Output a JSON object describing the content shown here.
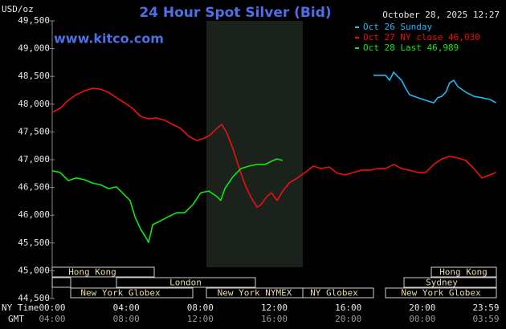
{
  "title": "24 Hour Spot Silver (Bid)",
  "timestamp": "October 28, 2025 12:27",
  "source": "www.kitco.com",
  "chart_data": {
    "type": "line",
    "ylabel": "USD/oz",
    "row_labels": [
      "NY Time",
      "GMT"
    ],
    "legend": "top-right",
    "grid": false,
    "xlim": [
      0,
      24
    ],
    "ylim": [
      44500,
      49500
    ],
    "yticks": [
      {
        "value": 44500,
        "label": "44,500"
      },
      {
        "value": 45000,
        "label": "45,000"
      },
      {
        "value": 45500,
        "label": "45,500"
      },
      {
        "value": 46000,
        "label": "46,000"
      },
      {
        "value": 46500,
        "label": "46,500"
      },
      {
        "value": 47000,
        "label": "47,000"
      },
      {
        "value": 47500,
        "label": "47,500"
      },
      {
        "value": 48000,
        "label": "48,000"
      },
      {
        "value": 48500,
        "label": "48,500"
      },
      {
        "value": 49000,
        "label": "49,000"
      },
      {
        "value": 49500,
        "label": "49,500"
      }
    ],
    "xticks": [
      {
        "value": 0,
        "label": "00:00"
      },
      {
        "value": 4,
        "label": "04:00"
      },
      {
        "value": 8,
        "label": "08:00"
      },
      {
        "value": 12,
        "label": "12:00"
      },
      {
        "value": 16,
        "label": "16:00"
      },
      {
        "value": 20,
        "label": "20:00"
      },
      {
        "value": 23.98,
        "label": "23:59"
      }
    ],
    "gmt_ticks": [
      {
        "value": 0,
        "label": "04:00"
      },
      {
        "value": 4,
        "label": "08:00"
      },
      {
        "value": 8,
        "label": "12:00"
      },
      {
        "value": 12,
        "label": "16:00"
      },
      {
        "value": 16,
        "label": "20:00"
      },
      {
        "value": 20,
        "label": "00:00"
      },
      {
        "value": 23.98,
        "label": "03:59"
      }
    ],
    "sessions": [
      "Hong Kong",
      "Hong Kong",
      "London",
      "Sydney",
      "New York Globex",
      "New York NYMEX",
      "NY Globex",
      "New York Globex"
    ],
    "series": [
      {
        "name": "Oct 26 Sunday",
        "color": "#1eb8ff",
        "x": [
          17.36,
          18.01,
          18.23,
          18.45,
          18.66,
          18.88,
          19.1,
          19.31,
          19.75,
          20.18,
          20.62,
          20.83,
          21.05,
          21.27,
          21.48,
          21.7,
          21.92,
          22.35,
          22.79,
          23.22,
          23.65,
          23.98
        ],
        "values": [
          48520,
          48520,
          48430,
          48575,
          48500,
          48430,
          48285,
          48170,
          48115,
          48070,
          48025,
          48115,
          48140,
          48215,
          48385,
          48430,
          48315,
          48215,
          48140,
          48115,
          48085,
          48025
        ]
      },
      {
        "name": "Oct 27 NY close 46,030",
        "color": "#f01010",
        "x": [
          0,
          0.43,
          0.87,
          1.3,
          1.74,
          2.17,
          2.6,
          3.04,
          3.47,
          3.91,
          4.34,
          4.77,
          5.21,
          5.64,
          6.08,
          6.51,
          6.94,
          7.38,
          7.81,
          8.25,
          8.55,
          8.9,
          9.16,
          9.42,
          9.77,
          10.11,
          10.42,
          10.72,
          11.07,
          11.28,
          11.59,
          11.85,
          12.15,
          12.46,
          12.8,
          13.24,
          13.67,
          14.11,
          14.54,
          14.97,
          15.41,
          15.84,
          16.28,
          16.71,
          17.14,
          17.58,
          18.01,
          18.45,
          18.88,
          19.31,
          19.75,
          20.18,
          20.62,
          21.05,
          21.48,
          21.92,
          22.35,
          22.79,
          23.22,
          23.65,
          23.98
        ],
        "values": [
          47850,
          47925,
          48070,
          48170,
          48240,
          48285,
          48270,
          48215,
          48115,
          48025,
          47925,
          47780,
          47735,
          47750,
          47710,
          47635,
          47565,
          47420,
          47345,
          47390,
          47450,
          47565,
          47635,
          47490,
          47200,
          46840,
          46550,
          46335,
          46145,
          46190,
          46335,
          46405,
          46265,
          46435,
          46580,
          46670,
          46770,
          46885,
          46840,
          46870,
          46755,
          46725,
          46770,
          46810,
          46810,
          46840,
          46840,
          46915,
          46840,
          46810,
          46770,
          46770,
          46915,
          47015,
          47060,
          47030,
          46985,
          46840,
          46670,
          46725,
          46770
        ]
      },
      {
        "name": "Oct 28 Last 46,989",
        "color": "#10e810",
        "x": [
          0,
          0.43,
          0.87,
          1.3,
          1.74,
          2.17,
          2.6,
          3.04,
          3.47,
          3.91,
          4.21,
          4.47,
          4.77,
          5.08,
          5.21,
          5.43,
          5.86,
          6.29,
          6.73,
          7.16,
          7.6,
          8.03,
          8.46,
          8.9,
          9.11,
          9.33,
          9.77,
          10.2,
          10.63,
          11.07,
          11.5,
          11.94,
          12.15,
          12.46
        ],
        "values": [
          46800,
          46770,
          46625,
          46670,
          46640,
          46580,
          46550,
          46480,
          46510,
          46365,
          46265,
          45975,
          45755,
          45585,
          45510,
          45830,
          45900,
          45975,
          46045,
          46045,
          46190,
          46405,
          46435,
          46335,
          46265,
          46480,
          46695,
          46840,
          46885,
          46915,
          46915,
          46985,
          47015,
          46985
        ]
      }
    ]
  }
}
